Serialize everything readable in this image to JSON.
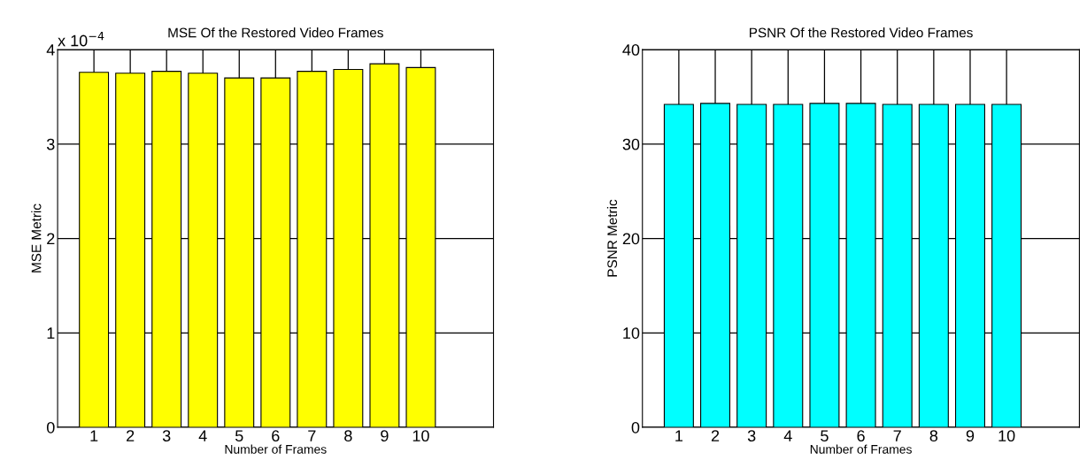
{
  "chart_data": [
    {
      "type": "bar",
      "title": "MSE Of the Restored Video Frames",
      "xlabel": "Number of Frames",
      "ylabel": "MSE Metric",
      "x": [
        1,
        2,
        3,
        4,
        5,
        6,
        7,
        8,
        9,
        10
      ],
      "values": [
        3.76,
        3.75,
        3.77,
        3.75,
        3.7,
        3.7,
        3.77,
        3.79,
        3.85,
        3.81
      ],
      "color": "#ffff00",
      "xlim": [
        0,
        12
      ],
      "ylim": [
        0,
        4
      ],
      "xticks": [
        1,
        2,
        3,
        4,
        5,
        6,
        7,
        8,
        9,
        10
      ],
      "yticks": [
        0,
        1,
        2,
        3,
        4
      ],
      "grid": true,
      "annotations": [
        "x 10$^{−4}$"
      ]
    },
    {
      "type": "bar",
      "title": "PSNR Of the Restored Video Frames",
      "xlabel": "Number of Frames",
      "ylabel": "PSNR Metric",
      "x": [
        1,
        2,
        3,
        4,
        5,
        6,
        7,
        8,
        9,
        10
      ],
      "values": [
        34.2,
        34.3,
        34.2,
        34.2,
        34.3,
        34.3,
        34.2,
        34.2,
        34.2,
        34.2
      ],
      "color": "#00ffff",
      "xlim": [
        0,
        12
      ],
      "ylim": [
        0,
        40
      ],
      "xticks": [
        1,
        2,
        3,
        4,
        5,
        6,
        7,
        8,
        9,
        10
      ],
      "yticks": [
        0,
        10,
        20,
        30,
        40
      ],
      "grid": true
    }
  ]
}
